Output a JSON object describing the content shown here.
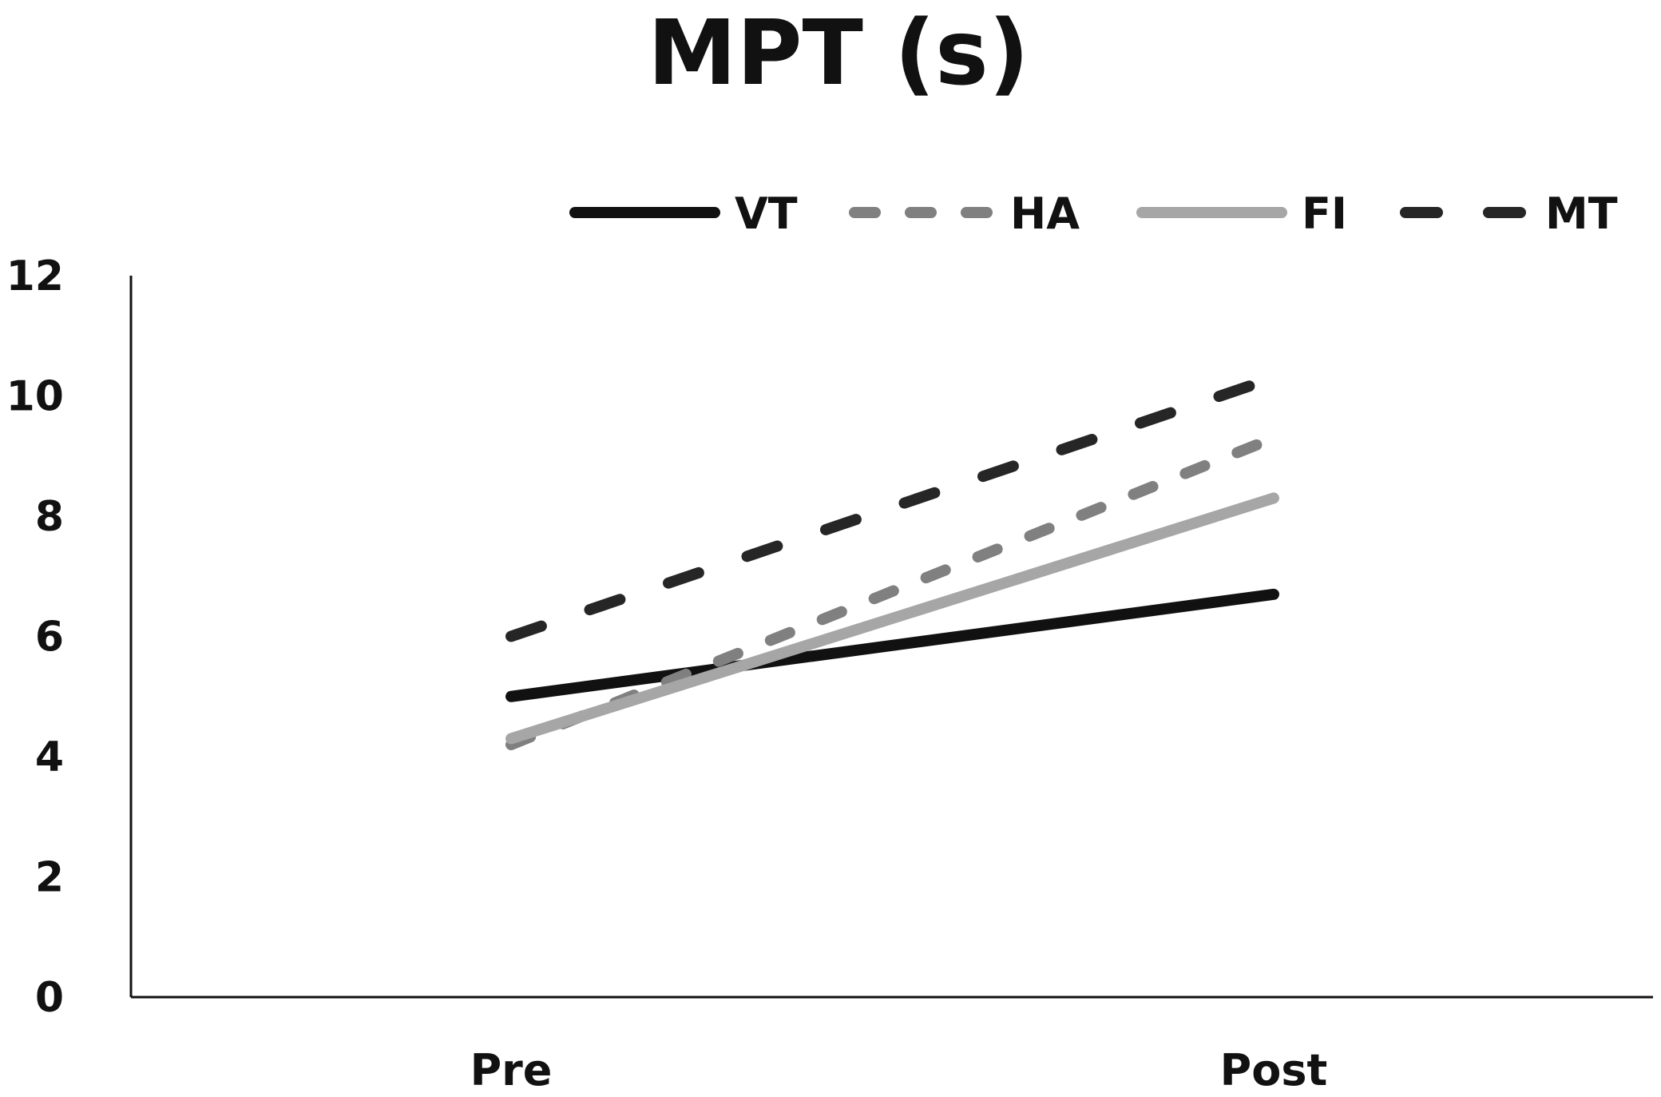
{
  "chart_data": {
    "type": "line",
    "title": "MPT (s)",
    "xlabel": "",
    "ylabel": "",
    "categories": [
      "Pre",
      "Post"
    ],
    "ylim": [
      0,
      12
    ],
    "yticks": [
      0,
      2,
      4,
      6,
      8,
      10,
      12
    ],
    "grid": false,
    "legend_position": "top-right",
    "series": [
      {
        "name": "VT",
        "values": [
          5.0,
          6.7
        ],
        "color": "#111111",
        "style": "solid"
      },
      {
        "name": "HA",
        "values": [
          4.2,
          9.3
        ],
        "color": "#808080",
        "style": "dashed"
      },
      {
        "name": "FI",
        "values": [
          4.3,
          8.3
        ],
        "color": "#a6a6a6",
        "style": "solid"
      },
      {
        "name": "MT",
        "values": [
          6.0,
          10.3
        ],
        "color": "#262626",
        "style": "dashed-long"
      }
    ]
  }
}
